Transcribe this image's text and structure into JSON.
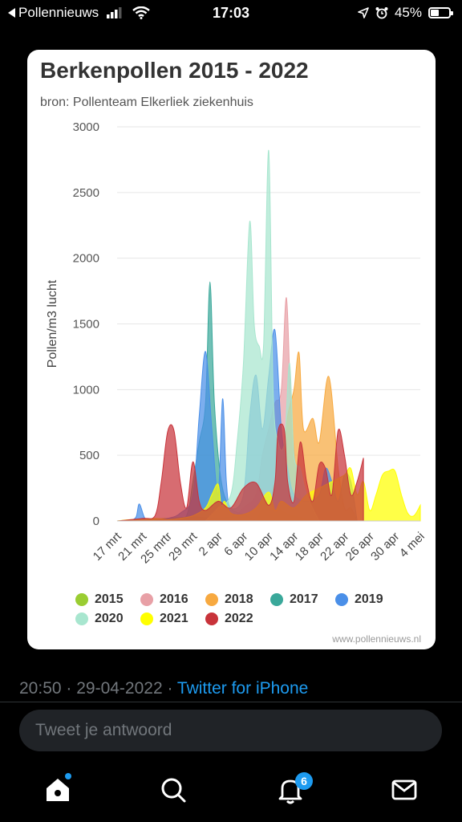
{
  "status_bar": {
    "back_app": "Pollennieuws",
    "time": "17:03",
    "battery": "45%",
    "battery_level": 0.45
  },
  "card": {
    "title": "Berkenpollen 2015 - 2022",
    "subtitle": "bron: Pollenteam Elkerliek ziekenhuis",
    "watermark": "www.pollennieuws.nl"
  },
  "chart_data": {
    "type": "area",
    "title": "Berkenpollen 2015 - 2022",
    "subtitle": "bron: Pollenteam Elkerliek ziekenhuis",
    "ylabel": "Pollen/m3 lucht",
    "xlabel": "",
    "ylim": [
      0,
      3000
    ],
    "yticks": [
      0,
      500,
      1000,
      1500,
      2000,
      2500,
      3000
    ],
    "xlim": [
      0,
      48
    ],
    "xtick_labels": [
      "17 mrt",
      "21 mrt",
      "25 mrtr",
      "29 mrt",
      "2 apr",
      "6 apr",
      "10 apr",
      "14 apr",
      "18 apr",
      "22 apr",
      "26 apr",
      "30 apr",
      "4 mei"
    ],
    "xtick_days": [
      0,
      4,
      8,
      12,
      16,
      20,
      24,
      28,
      32,
      36,
      40,
      44,
      48
    ],
    "grid": true,
    "legend_position": "bottom",
    "series": [
      {
        "name": "2015",
        "color": "#9acd32",
        "x": [
          0,
          4,
          8,
          12,
          16,
          20,
          22,
          24,
          26,
          28,
          32
        ],
        "y": [
          0,
          10,
          20,
          30,
          20,
          50,
          120,
          180,
          80,
          40,
          0
        ]
      },
      {
        "name": "2016",
        "color": "#e8a0a6",
        "x": [
          18,
          20,
          22,
          23,
          24,
          25,
          26,
          26.8,
          27.5,
          28.5,
          30,
          32
        ],
        "y": [
          0,
          100,
          200,
          500,
          700,
          900,
          1000,
          1700,
          900,
          300,
          100,
          0
        ]
      },
      {
        "name": "2018",
        "color": "#f7a940",
        "x": [
          22,
          24,
          26,
          27,
          28,
          28.8,
          29.5,
          31,
          32,
          33.5,
          35,
          36,
          37,
          38
        ],
        "y": [
          0,
          200,
          400,
          800,
          1000,
          1280,
          700,
          780,
          600,
          1100,
          400,
          100,
          100,
          0
        ]
      },
      {
        "name": "2017",
        "color": "#3aa89a",
        "x": [
          9,
          11,
          12,
          13,
          14,
          14.7,
          15.4,
          16.5,
          18,
          20,
          22
        ],
        "y": [
          0,
          40,
          300,
          600,
          900,
          1820,
          900,
          300,
          100,
          50,
          0
        ]
      },
      {
        "name": "2019",
        "color": "#4a8fe8",
        "x": [
          2,
          3,
          3.5,
          4.3,
          5,
          8,
          10,
          12,
          13,
          14,
          15,
          16,
          16.7,
          17.3,
          18,
          20,
          21,
          22,
          23,
          24,
          25,
          26,
          27,
          28,
          30,
          32,
          33,
          34,
          35,
          36,
          37,
          38
        ],
        "y": [
          0,
          30,
          130,
          30,
          0,
          20,
          60,
          200,
          800,
          1290,
          700,
          200,
          930,
          300,
          100,
          200,
          800,
          1110,
          700,
          1100,
          1450,
          700,
          400,
          200,
          150,
          200,
          400,
          300,
          150,
          350,
          300,
          0
        ]
      },
      {
        "name": "2020",
        "color": "#a8e6cf",
        "x": [
          14,
          16,
          18,
          19,
          20,
          21,
          21.7,
          22.5,
          23.2,
          24,
          24.7,
          25.5,
          26.5,
          27.3,
          28,
          29,
          30,
          32
        ],
        "y": [
          0,
          100,
          200,
          600,
          1200,
          2280,
          1500,
          1330,
          1350,
          2820,
          1000,
          600,
          600,
          1200,
          500,
          400,
          200,
          0
        ]
      },
      {
        "name": "2021",
        "color": "#ffff00",
        "x": [
          0,
          2,
          4,
          6,
          8,
          10,
          12,
          14,
          15,
          16,
          16.5,
          17,
          18,
          20,
          22,
          24,
          25,
          26,
          28,
          30,
          32,
          34,
          36,
          37,
          38,
          39,
          40,
          41,
          42,
          43,
          44,
          45,
          46,
          47,
          48
        ],
        "y": [
          0,
          10,
          10,
          20,
          10,
          20,
          40,
          100,
          200,
          280,
          100,
          150,
          60,
          50,
          100,
          220,
          80,
          150,
          100,
          200,
          250,
          300,
          350,
          400,
          200,
          300,
          80,
          200,
          350,
          380,
          380,
          200,
          60,
          40,
          120
        ]
      },
      {
        "name": "2022",
        "color": "#c8333a",
        "x": [
          0,
          4,
          6,
          7,
          8,
          9,
          10,
          11,
          12,
          13,
          14,
          16,
          18,
          20,
          22,
          24,
          25,
          25.5,
          26.5,
          27,
          28,
          29,
          30,
          31,
          32,
          33,
          34,
          35,
          36,
          37,
          38,
          39
        ],
        "y": [
          0,
          20,
          40,
          300,
          680,
          690,
          300,
          100,
          450,
          150,
          80,
          150,
          100,
          250,
          290,
          120,
          300,
          690,
          690,
          300,
          150,
          600,
          300,
          150,
          430,
          400,
          200,
          690,
          500,
          200,
          300,
          480
        ]
      }
    ]
  },
  "tweet": {
    "timestamp": "20:50 · 29-04-2022 · ",
    "via": "Twitter for iPhone"
  },
  "reply": {
    "placeholder": "Tweet je antwoord"
  },
  "nav": {
    "notifications_count": "6"
  }
}
